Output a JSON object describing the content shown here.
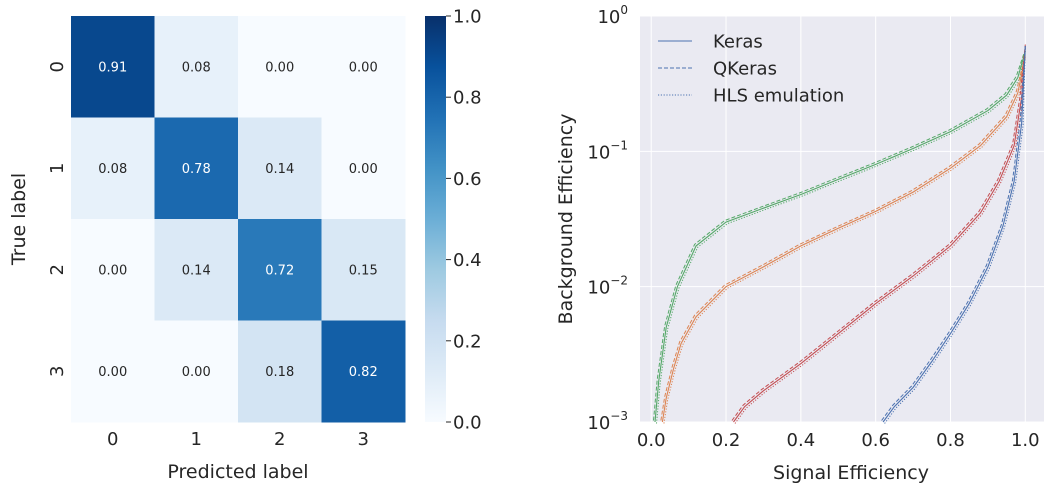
{
  "chart_data": [
    {
      "type": "heatmap",
      "xlabel": "Predicted label",
      "ylabel": "True label",
      "x_categories": [
        "0",
        "1",
        "2",
        "3"
      ],
      "y_categories": [
        "0",
        "1",
        "2",
        "3"
      ],
      "values": [
        [
          0.91,
          0.08,
          0.0,
          0.0
        ],
        [
          0.08,
          0.78,
          0.14,
          0.0
        ],
        [
          0.0,
          0.14,
          0.72,
          0.15
        ],
        [
          0.0,
          0.0,
          0.18,
          0.82
        ]
      ],
      "cell_labels": [
        [
          "0.91",
          "0.08",
          "0.00",
          "0.00"
        ],
        [
          "0.08",
          "0.78",
          "0.14",
          "0.00"
        ],
        [
          "0.00",
          "0.14",
          "0.72",
          "0.15"
        ],
        [
          "0.00",
          "0.00",
          "0.18",
          "0.82"
        ]
      ],
      "colorbar": {
        "colormap": "Blues",
        "range": [
          0.0,
          1.0
        ],
        "ticks": [
          0.0,
          0.2,
          0.4,
          0.6,
          0.8,
          1.0
        ],
        "tick_labels": [
          "0.0",
          "0.2",
          "0.4",
          "0.6",
          "0.8",
          "1.0"
        ]
      }
    },
    {
      "type": "line",
      "xlabel": "Signal Efficiency",
      "ylabel": "Background Efficiency",
      "xlim": [
        -0.03,
        1.05
      ],
      "ylim": [
        0.001,
        1
      ],
      "yscale": "log",
      "grid": true,
      "background": "#eaeaf2",
      "legend_position": "top-left",
      "x_ticks": [
        0.0,
        0.2,
        0.4,
        0.6,
        0.8,
        1.0
      ],
      "x_tick_labels": [
        "0.0",
        "0.2",
        "0.4",
        "0.6",
        "0.8",
        "1.0"
      ],
      "y_ticks": [
        0.001,
        0.01,
        0.1,
        1
      ],
      "y_tick_bases": [
        "10",
        "10",
        "10",
        "10"
      ],
      "y_tick_exponents": [
        "−3",
        "−2",
        "−1",
        "0"
      ],
      "legend": [
        {
          "label": "Keras",
          "style": "solid"
        },
        {
          "label": "QKeras",
          "style": "dashed"
        },
        {
          "label": "HLS emulation",
          "style": "dotted"
        }
      ],
      "series": [
        {
          "color": "#55a868",
          "x": [
            0.01,
            0.02,
            0.04,
            0.07,
            0.12,
            0.2,
            0.3,
            0.4,
            0.5,
            0.6,
            0.7,
            0.8,
            0.9,
            0.95,
            0.98,
            1.0
          ],
          "y": [
            0.001,
            0.002,
            0.005,
            0.01,
            0.02,
            0.03,
            0.038,
            0.048,
            0.062,
            0.08,
            0.105,
            0.14,
            0.2,
            0.26,
            0.35,
            0.55
          ]
        },
        {
          "color": "#dd8452",
          "x": [
            0.03,
            0.04,
            0.06,
            0.08,
            0.12,
            0.2,
            0.3,
            0.4,
            0.5,
            0.6,
            0.7,
            0.8,
            0.88,
            0.95,
            0.98,
            1.0
          ],
          "y": [
            0.001,
            0.0015,
            0.0025,
            0.0038,
            0.006,
            0.01,
            0.014,
            0.02,
            0.027,
            0.036,
            0.05,
            0.075,
            0.11,
            0.18,
            0.27,
            0.5
          ]
        },
        {
          "color": "#c44e52",
          "x": [
            0.22,
            0.25,
            0.3,
            0.4,
            0.5,
            0.6,
            0.7,
            0.8,
            0.88,
            0.93,
            0.97,
            0.99,
            1.0
          ],
          "y": [
            0.001,
            0.0013,
            0.0017,
            0.0027,
            0.0045,
            0.0075,
            0.012,
            0.02,
            0.035,
            0.06,
            0.11,
            0.25,
            0.6
          ]
        },
        {
          "color": "#4c72b0",
          "x": [
            0.62,
            0.65,
            0.7,
            0.75,
            0.8,
            0.85,
            0.9,
            0.94,
            0.97,
            0.99,
            1.0
          ],
          "y": [
            0.001,
            0.0013,
            0.0018,
            0.0028,
            0.0045,
            0.0075,
            0.014,
            0.028,
            0.06,
            0.16,
            0.6
          ]
        }
      ]
    }
  ]
}
